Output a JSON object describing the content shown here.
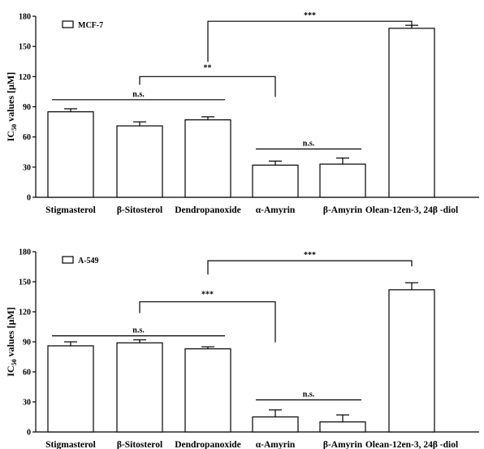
{
  "chart_data": [
    {
      "type": "bar",
      "legend": "MCF-7",
      "legend_position": "top-left",
      "ylabel": "IC50 values [μM]",
      "ylim": [
        0,
        180
      ],
      "yticks": [
        0,
        30,
        60,
        90,
        120,
        150,
        180
      ],
      "categories": [
        "Stigmasterol",
        "β-Sitosterol",
        "Dendropanoxide",
        "α-Amyrin",
        "β-Amyrin",
        "Olean-12en-3, 24β -diol"
      ],
      "values": [
        85,
        71,
        77,
        32,
        33,
        168
      ],
      "errors": [
        3,
        4,
        3,
        4,
        6,
        3
      ],
      "annotations": [
        {
          "label": "n.s.",
          "from": 0,
          "to": 2
        },
        {
          "label": "**",
          "from": 1,
          "to": 3
        },
        {
          "label": "n.s.",
          "from": 3,
          "to": 4
        },
        {
          "label": "***",
          "from": 2,
          "to": 5
        }
      ],
      "grid": false
    },
    {
      "type": "bar",
      "legend": "A-549",
      "legend_position": "top-left",
      "ylabel": "IC50 values [μM]",
      "ylim": [
        0,
        180
      ],
      "yticks": [
        0,
        30,
        60,
        90,
        120,
        150,
        180
      ],
      "categories": [
        "Stigmasterol",
        "β-Sitosterol",
        "Dendropanoxide",
        "α-Amyrin",
        "β-Amyrin",
        "Olean-12en-3, 24β -diol"
      ],
      "values": [
        86,
        89,
        83,
        15,
        10,
        142
      ],
      "errors": [
        4,
        3,
        2,
        7,
        7,
        7
      ],
      "annotations": [
        {
          "label": "n.s.",
          "from": 0,
          "to": 2
        },
        {
          "label": "***",
          "from": 1,
          "to": 3
        },
        {
          "label": "n.s.",
          "from": 3,
          "to": 4
        },
        {
          "label": "***",
          "from": 2,
          "to": 5
        }
      ],
      "grid": false
    }
  ]
}
